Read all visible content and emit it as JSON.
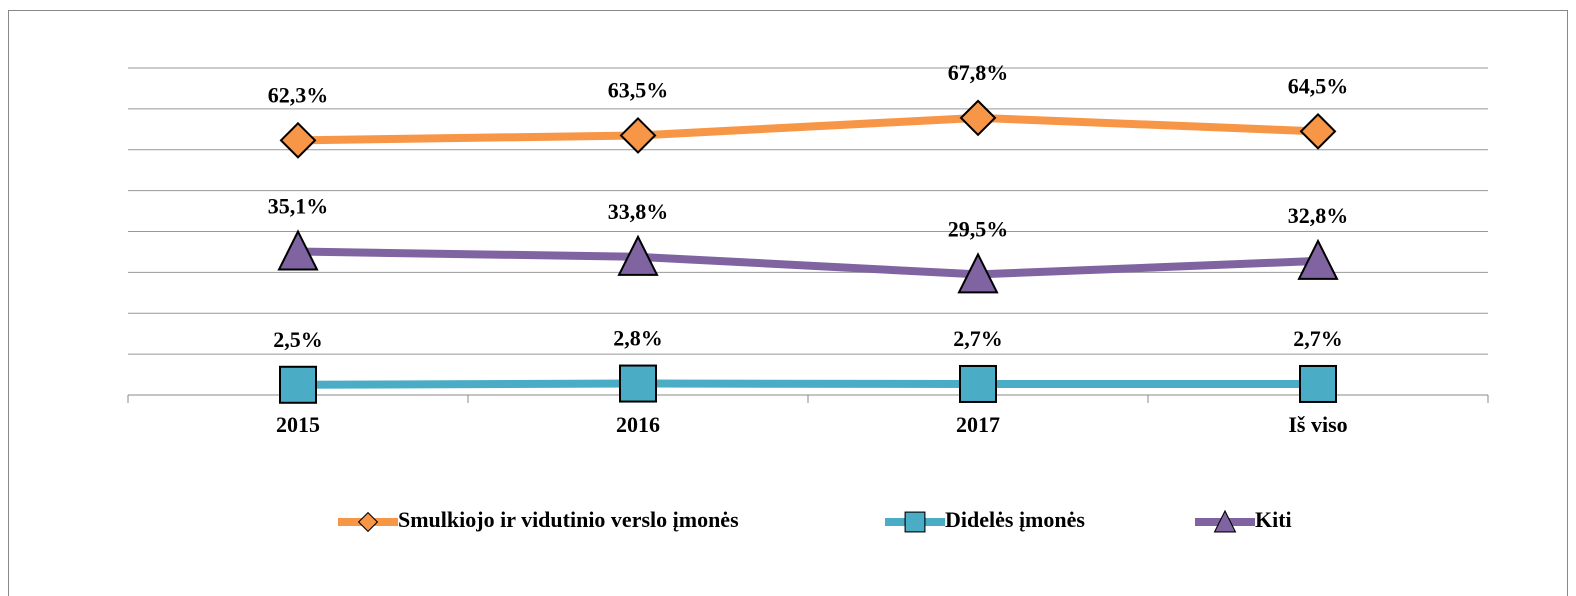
{
  "chart_data": {
    "type": "line",
    "categories": [
      "2015",
      "2016",
      "2017",
      "Iš viso"
    ],
    "ylim": [
      0,
      80
    ],
    "yticks": [
      0,
      10,
      20,
      30,
      40,
      50,
      60,
      70,
      80
    ],
    "grid": true,
    "legend": "bottom",
    "series": [
      {
        "name": "Smulkiojo ir vidutinio verslo įmonės",
        "color": "#f79646",
        "marker": "diamond",
        "values": [
          62.3,
          63.5,
          67.8,
          64.5
        ],
        "value_labels": [
          "62,3%",
          "63,5%",
          "67,8%",
          "64,5%"
        ]
      },
      {
        "name": "Didelės įmonės",
        "color": "#4bacc6",
        "marker": "square",
        "values": [
          2.5,
          2.8,
          2.7,
          2.7
        ],
        "value_labels": [
          "2,5%",
          "2,8%",
          "2,7%",
          "2,7%"
        ]
      },
      {
        "name": "Kiti",
        "color": "#8064a2",
        "marker": "triangle",
        "values": [
          35.1,
          33.8,
          29.5,
          32.8
        ],
        "value_labels": [
          "35,1%",
          "33,8%",
          "29,5%",
          "32,8%"
        ]
      }
    ]
  }
}
